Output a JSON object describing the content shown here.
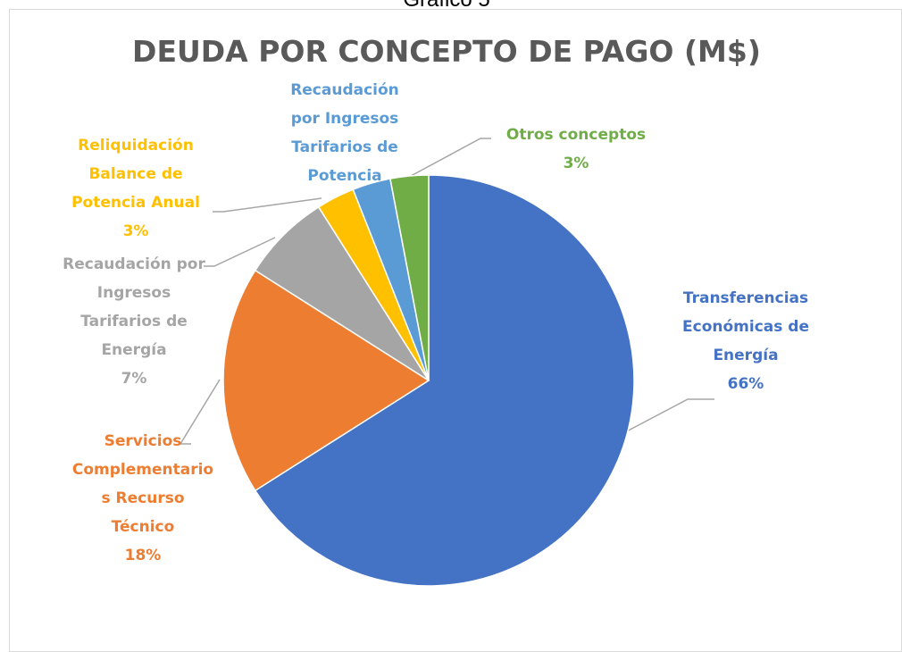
{
  "caption": "Gráfico 5",
  "chart_data": {
    "type": "pie",
    "title": "DEUDA POR CONCEPTO DE PAGO (M$)",
    "categories": [
      "Transferencias Económicas de Energía",
      "Servicios Complementarios Recurso Técnico",
      "Recaudación por Ingresos Tarifarios de Energía",
      "Reliquidación Balance de Potencia Anual",
      "Recaudación por Ingresos Tarifarios de Potencia",
      "Otros conceptos"
    ],
    "values": [
      66,
      18,
      7,
      3,
      3,
      3
    ],
    "value_labels": [
      "66%",
      "18%",
      "7%",
      "3%",
      null,
      "3%"
    ],
    "colors": [
      "#4472c4",
      "#ed7d31",
      "#a5a5a5",
      "#ffc000",
      "#5b9bd5",
      "#70ad47"
    ]
  }
}
